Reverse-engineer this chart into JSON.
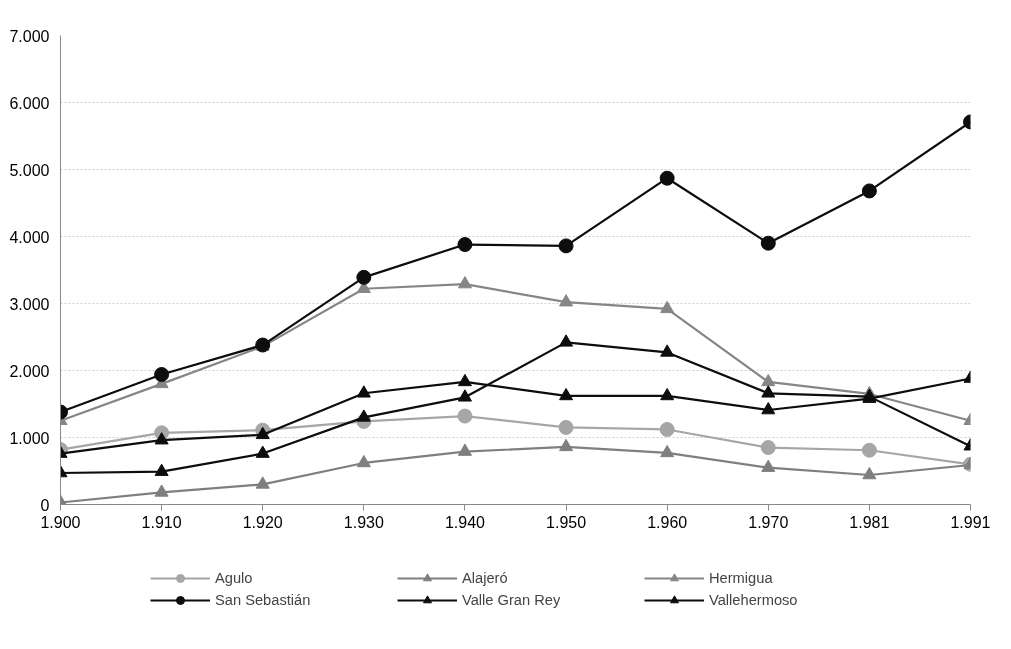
{
  "chart_data": {
    "type": "line",
    "categories": [
      "1.900",
      "1.910",
      "1.920",
      "1.930",
      "1.940",
      "1.950",
      "1.960",
      "1.970",
      "1.981",
      "1.991"
    ],
    "series": [
      {
        "name": "Agulo",
        "color": "#a6a6a6",
        "marker": "circle",
        "values": [
          820,
          1070,
          1110,
          1240,
          1320,
          1150,
          1120,
          850,
          810,
          600
        ]
      },
      {
        "name": "Alajeró",
        "color": "#7f7f7f",
        "marker": "triangle",
        "values": [
          30,
          180,
          300,
          620,
          790,
          860,
          770,
          550,
          440,
          590
        ]
      },
      {
        "name": "Hermigua",
        "color": "#868686",
        "marker": "triangle",
        "values": [
          1250,
          1800,
          2360,
          3220,
          3290,
          3020,
          2920,
          1830,
          1650,
          1250
        ]
      },
      {
        "name": "San Sebastián",
        "color": "#0d0d0d",
        "marker": "circle",
        "values": [
          1380,
          1940,
          2380,
          3390,
          3880,
          3860,
          4870,
          3900,
          4680,
          5710
        ]
      },
      {
        "name": "Valle Gran Rey",
        "color": "#0d0d0d",
        "marker": "triangle",
        "values": [
          760,
          960,
          1040,
          1660,
          1830,
          1620,
          1620,
          1410,
          1580,
          1880
        ]
      },
      {
        "name": "Vallehermoso",
        "color": "#0d0d0d",
        "marker": "triangle",
        "values": [
          470,
          490,
          760,
          1300,
          1600,
          2420,
          2270,
          1660,
          1610,
          870
        ]
      }
    ],
    "ylim": [
      0,
      7000
    ],
    "yticks": [
      0,
      {
        "value": 1000,
        "label": "1.000"
      },
      {
        "value": 2000,
        "label": "2.000"
      },
      {
        "value": 3000,
        "label": "3.000"
      },
      {
        "value": 4000,
        "label": "4.000"
      },
      {
        "value": 5000,
        "label": "5.000"
      },
      {
        "value": 6000,
        "label": "6.000"
      },
      {
        "value": 7000,
        "label": "7.000"
      }
    ],
    "grid": "y",
    "legend": "bottom",
    "line_style": "solid"
  }
}
